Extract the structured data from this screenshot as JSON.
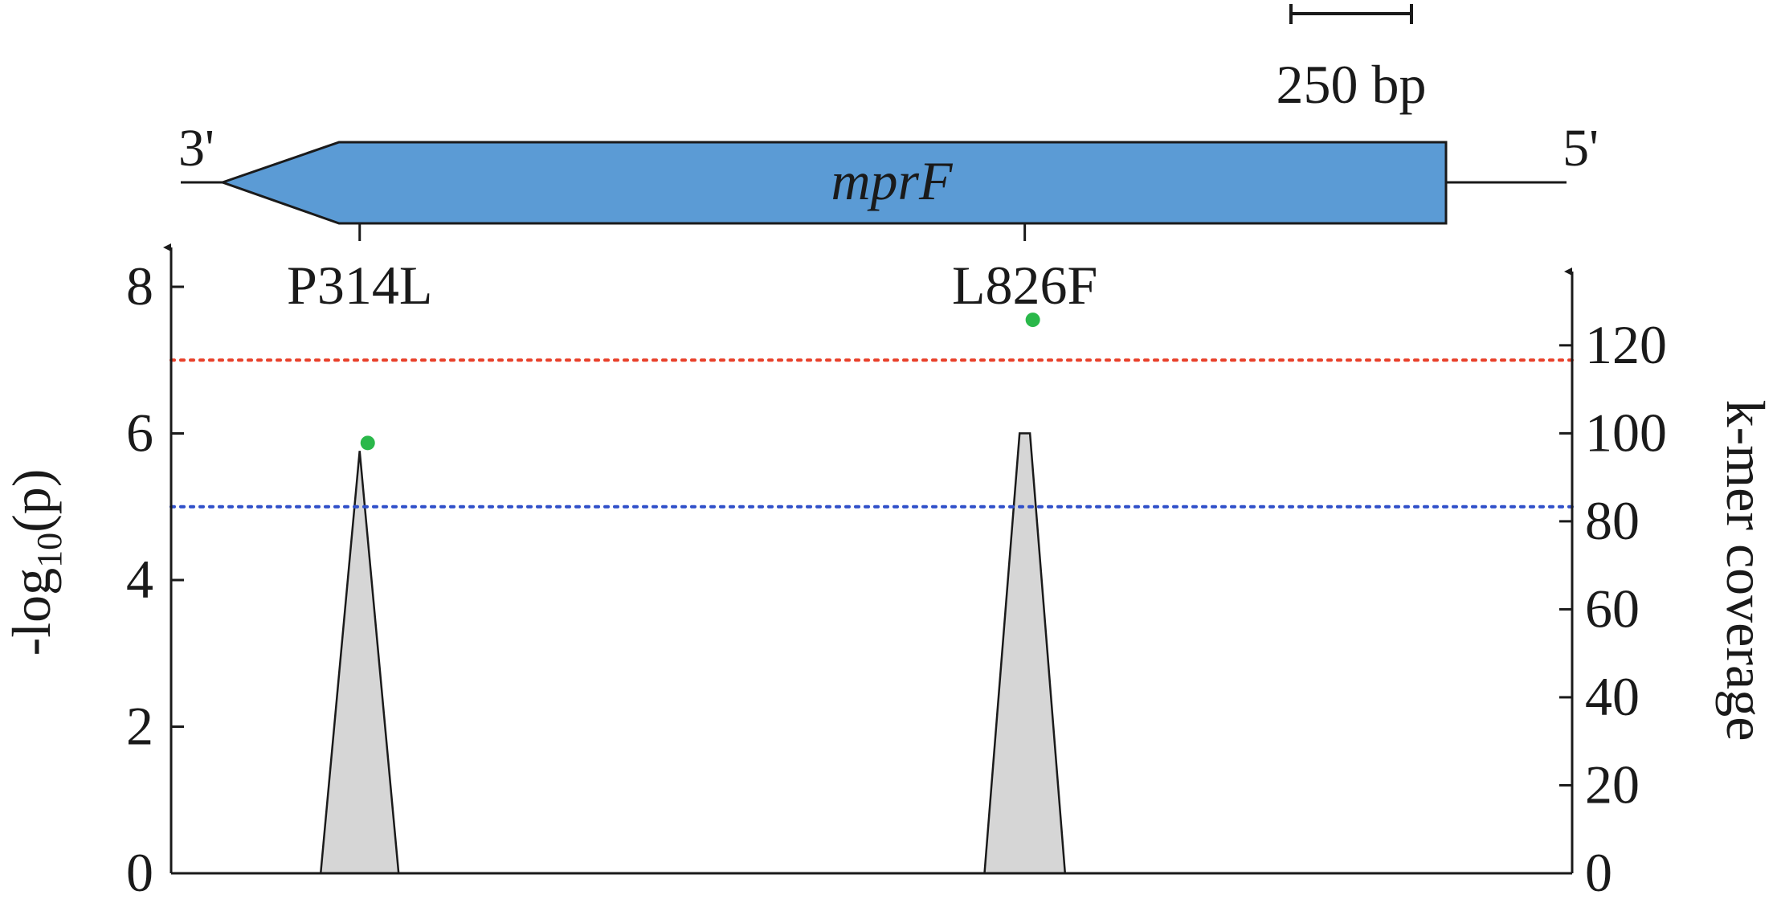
{
  "chart_data": {
    "type": "scatter",
    "gene": {
      "name": "mprF",
      "label_3prime": "3'",
      "label_5prime": "5'",
      "scale_bar_label": "250 bp",
      "scale_bar_length_bp": 250
    },
    "variants": [
      {
        "label": "P314L",
        "x": 314,
        "neglog10p": 5.87,
        "coverage_peak": 96
      },
      {
        "label": "L826F",
        "x": 826,
        "neglog10p": 7.55,
        "coverage_peak": 100
      }
    ],
    "coverage_series": [
      {
        "points": [
          [
            284,
            0
          ],
          [
            314,
            96
          ],
          [
            344,
            0
          ]
        ]
      },
      {
        "points": [
          [
            795,
            0
          ],
          [
            822,
            100
          ],
          [
            830,
            100
          ],
          [
            857,
            0
          ]
        ]
      }
    ],
    "thresholds": [
      {
        "value": 7,
        "color": "#e8402a"
      },
      {
        "value": 5,
        "color": "#2f4fc9"
      }
    ],
    "xlim": [
      0,
      1000
    ],
    "y_left": {
      "label": "-log",
      "label_sub": "10",
      "label_suffix": "(p)",
      "ylim": [
        0,
        8
      ],
      "ticks": [
        "0",
        "2",
        "4",
        "6",
        "8"
      ]
    },
    "y_right": {
      "label": "k-mer coverage",
      "ylim": [
        0,
        133.3
      ],
      "ticks": [
        "0",
        "20",
        "40",
        "60",
        "80",
        "100",
        "120"
      ]
    },
    "colors": {
      "gene": "#5b9bd5",
      "point": "#2ab84a",
      "coverage_fill": "#d6d6d6",
      "axis": "#1a1a1a"
    },
    "grid": false
  }
}
